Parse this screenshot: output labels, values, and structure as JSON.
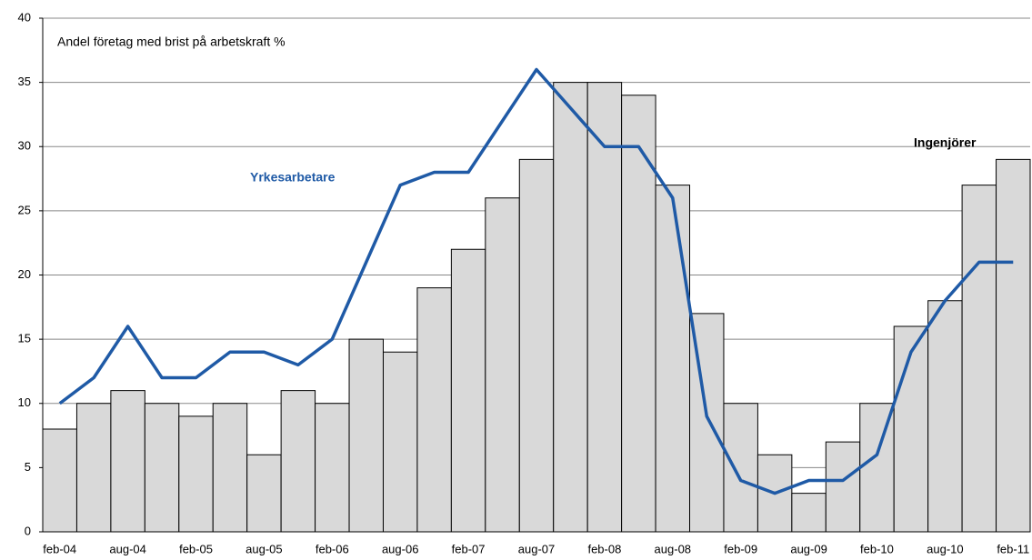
{
  "chart_data": {
    "type": "bar-line",
    "title": "Andel företag med brist på arbetskraft %",
    "categories": [
      "feb-04",
      null,
      "aug-04",
      null,
      "feb-05",
      null,
      "aug-05",
      null,
      "feb-06",
      null,
      "aug-06",
      null,
      "feb-07",
      null,
      "aug-07",
      null,
      "feb-08",
      null,
      "aug-08",
      null,
      "feb-09",
      null,
      "aug-09",
      null,
      "feb-10",
      null,
      "aug-10",
      null,
      "feb-11"
    ],
    "series": [
      {
        "name": "Ingenjörer",
        "type": "bar",
        "color": "#d9d9d9",
        "values": [
          8,
          10,
          11,
          10,
          9,
          10,
          6,
          11,
          10,
          15,
          14,
          19,
          22,
          26,
          29,
          35,
          35,
          34,
          27,
          17,
          10,
          6,
          3,
          7,
          10,
          16,
          18,
          27,
          29
        ]
      },
      {
        "name": "Yrkesarbetare",
        "type": "line",
        "color": "#1f5aa6",
        "values": [
          10,
          12,
          16,
          12,
          12,
          14,
          14,
          13,
          15,
          21,
          27,
          28,
          28,
          32,
          36,
          33,
          30,
          30,
          26,
          9,
          4,
          3,
          4,
          4,
          6,
          14,
          18,
          21,
          21
        ]
      }
    ],
    "ylim": [
      0,
      40
    ],
    "yticks": [
      0,
      5,
      10,
      15,
      20,
      25,
      30,
      35,
      40
    ],
    "grid": true
  }
}
